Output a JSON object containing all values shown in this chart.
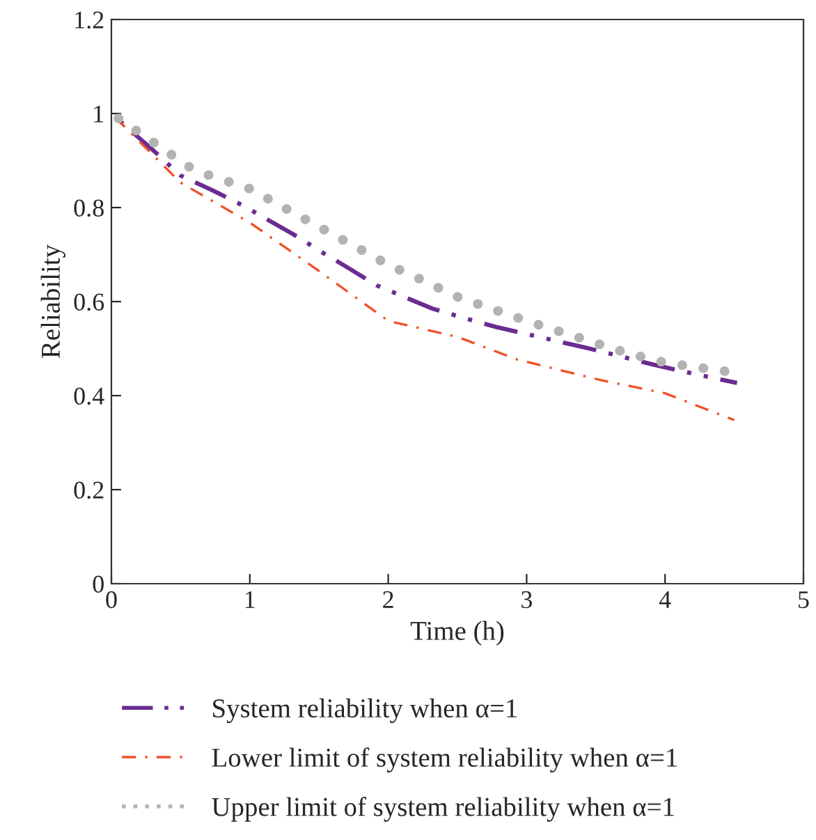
{
  "chart_data": {
    "type": "line",
    "xlabel": "Time (h)",
    "ylabel": "Reliability",
    "xlim": [
      0,
      5
    ],
    "xticks": [
      0,
      1,
      2,
      3,
      4,
      5
    ],
    "ylim": [
      0,
      1.2
    ],
    "yticks": [
      0,
      0.2,
      0.4,
      0.6,
      0.8,
      1,
      1.2
    ],
    "grid": false,
    "legend": "bottom",
    "series": [
      {
        "name": "System reliability when α=1",
        "color": "#6a2c91",
        "line_style": "dashed",
        "x": [
          0,
          0.32,
          0.5,
          0.72,
          0.94,
          1.31,
          1.51,
          1.72,
          1.92,
          2.32,
          2.55,
          2.78,
          3.0,
          3.44,
          3.66,
          3.9,
          4.12,
          4.52
        ],
        "values": [
          1,
          0.917,
          0.868,
          0.838,
          0.806,
          0.744,
          0.707,
          0.67,
          0.634,
          0.585,
          0.565,
          0.546,
          0.531,
          0.501,
          0.485,
          0.467,
          0.452,
          0.427
        ]
      },
      {
        "name": "Lower limit of system reliability when α=1",
        "color": "#f0502a",
        "line_style": "dashdot",
        "x": [
          0,
          0.5,
          1.0,
          1.5,
          2.0,
          2.5,
          2.93,
          3.55,
          4.0,
          4.5
        ],
        "values": [
          1,
          0.853,
          0.768,
          0.665,
          0.559,
          0.525,
          0.477,
          0.432,
          0.405,
          0.348
        ]
      },
      {
        "name": "Upper limit of system reliability when α=1",
        "color": "#b3b3b3",
        "line_style": "dotted",
        "x": [
          0,
          0.6,
          1.0,
          1.37,
          2.01,
          2.23,
          2.5,
          3.02,
          3.71,
          4.0,
          4.43
        ],
        "values": [
          1,
          0.879,
          0.84,
          0.78,
          0.677,
          0.648,
          0.61,
          0.557,
          0.492,
          0.47,
          0.452
        ]
      }
    ]
  }
}
